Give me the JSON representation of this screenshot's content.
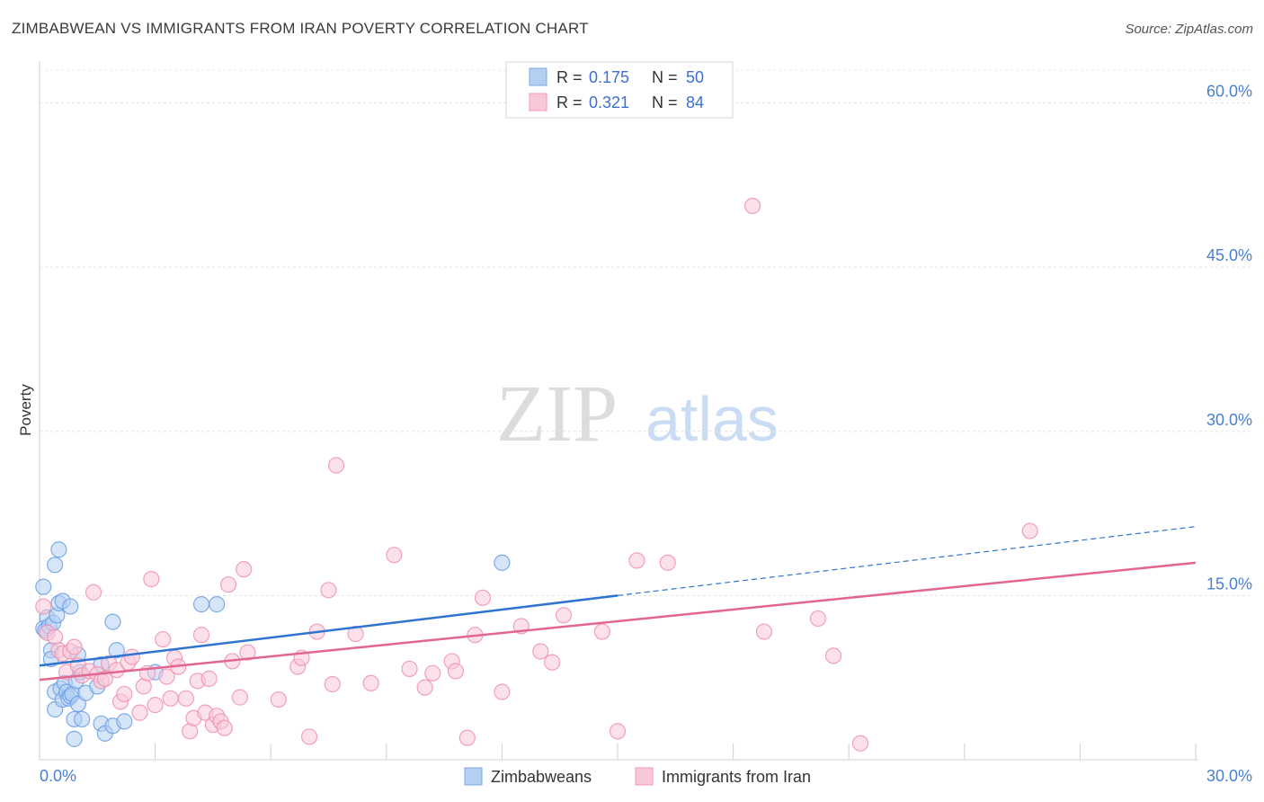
{
  "header": {
    "title": "ZIMBABWEAN VS IMMIGRANTS FROM IRAN POVERTY CORRELATION CHART",
    "source": "Source: ZipAtlas.com"
  },
  "watermark": {
    "zip": "ZIP",
    "atlas": "atlas"
  },
  "legend": {
    "r_label": "R =",
    "n_label": "N =",
    "entries": [
      {
        "r": "0.175",
        "n": "50",
        "color": "#9cc0ef"
      },
      {
        "r": "0.321",
        "n": "84",
        "color": "#f5b3c8"
      }
    ]
  },
  "chart_data": {
    "type": "scatter",
    "title": "ZIMBABWEAN VS IMMIGRANTS FROM IRAN POVERTY CORRELATION CHART",
    "xlabel": "",
    "ylabel": "Poverty",
    "xlim": [
      0,
      30
    ],
    "ylim": [
      0,
      63
    ],
    "y_ticks": [
      15,
      30,
      45,
      60
    ],
    "y_tick_labels": [
      "15.0%",
      "30.0%",
      "45.0%",
      "60.0%"
    ],
    "x_tick_labels": [
      "0.0%",
      "30.0%"
    ],
    "grid": true,
    "series": [
      {
        "name": "Zimbabweans",
        "color": "#6a9fe6",
        "fill": "#b5cff3",
        "trend": {
          "x0": 0,
          "y0": 8.6,
          "x1": 15.0,
          "y1": 15.0,
          "dash_to_x": 30,
          "dash_to_y": 21.3,
          "color": "#2f74d0"
        },
        "points": [
          {
            "x": 0.1,
            "y": 15.8
          },
          {
            "x": 0.1,
            "y": 12.0
          },
          {
            "x": 0.15,
            "y": 11.8
          },
          {
            "x": 0.2,
            "y": 13.0
          },
          {
            "x": 0.25,
            "y": 12.2
          },
          {
            "x": 0.3,
            "y": 10.0
          },
          {
            "x": 0.3,
            "y": 9.2
          },
          {
            "x": 0.35,
            "y": 12.5
          },
          {
            "x": 0.4,
            "y": 17.8
          },
          {
            "x": 0.4,
            "y": 6.2
          },
          {
            "x": 0.4,
            "y": 4.6
          },
          {
            "x": 0.45,
            "y": 13.2
          },
          {
            "x": 0.5,
            "y": 19.2
          },
          {
            "x": 0.5,
            "y": 14.3
          },
          {
            "x": 0.55,
            "y": 6.5
          },
          {
            "x": 0.6,
            "y": 5.5
          },
          {
            "x": 0.6,
            "y": 14.5
          },
          {
            "x": 0.65,
            "y": 7.0
          },
          {
            "x": 0.7,
            "y": 6.2
          },
          {
            "x": 0.75,
            "y": 5.6
          },
          {
            "x": 0.8,
            "y": 14.0
          },
          {
            "x": 0.8,
            "y": 5.8
          },
          {
            "x": 0.85,
            "y": 6.0
          },
          {
            "x": 0.9,
            "y": 1.9
          },
          {
            "x": 0.9,
            "y": 3.7
          },
          {
            "x": 0.95,
            "y": 7.2
          },
          {
            "x": 1.0,
            "y": 9.6
          },
          {
            "x": 1.0,
            "y": 5.1
          },
          {
            "x": 1.05,
            "y": 8.0
          },
          {
            "x": 1.1,
            "y": 3.7
          },
          {
            "x": 1.2,
            "y": 6.1
          },
          {
            "x": 1.5,
            "y": 6.7
          },
          {
            "x": 1.6,
            "y": 8.7
          },
          {
            "x": 1.6,
            "y": 3.3
          },
          {
            "x": 1.7,
            "y": 2.4
          },
          {
            "x": 1.9,
            "y": 12.6
          },
          {
            "x": 1.9,
            "y": 3.1
          },
          {
            "x": 2.0,
            "y": 10.0
          },
          {
            "x": 2.2,
            "y": 3.5
          },
          {
            "x": 3.0,
            "y": 8.0
          },
          {
            "x": 4.2,
            "y": 14.2
          },
          {
            "x": 4.6,
            "y": 14.2
          },
          {
            "x": 12.0,
            "y": 18.0
          }
        ]
      },
      {
        "name": "Immigrants from Iran",
        "color": "#ee91b0",
        "fill": "#f9c8d8",
        "trend": {
          "x0": 0,
          "y0": 7.3,
          "x1": 30,
          "y1": 18.0,
          "color": "#e2668f"
        },
        "points": [
          {
            "x": 0.1,
            "y": 14.0
          },
          {
            "x": 0.2,
            "y": 11.6
          },
          {
            "x": 0.4,
            "y": 11.2
          },
          {
            "x": 0.5,
            "y": 10.0
          },
          {
            "x": 0.6,
            "y": 9.7
          },
          {
            "x": 0.7,
            "y": 8.0
          },
          {
            "x": 0.8,
            "y": 9.9
          },
          {
            "x": 0.9,
            "y": 10.3
          },
          {
            "x": 1.0,
            "y": 8.6
          },
          {
            "x": 1.1,
            "y": 7.7
          },
          {
            "x": 1.3,
            "y": 8.1
          },
          {
            "x": 1.4,
            "y": 15.3
          },
          {
            "x": 1.5,
            "y": 7.8
          },
          {
            "x": 1.6,
            "y": 7.2
          },
          {
            "x": 1.7,
            "y": 7.4
          },
          {
            "x": 1.8,
            "y": 8.8
          },
          {
            "x": 2.0,
            "y": 8.2
          },
          {
            "x": 2.1,
            "y": 5.3
          },
          {
            "x": 2.2,
            "y": 6.0
          },
          {
            "x": 2.3,
            "y": 8.9
          },
          {
            "x": 2.4,
            "y": 9.4
          },
          {
            "x": 2.6,
            "y": 4.3
          },
          {
            "x": 2.7,
            "y": 6.7
          },
          {
            "x": 2.8,
            "y": 7.9
          },
          {
            "x": 2.9,
            "y": 16.5
          },
          {
            "x": 3.0,
            "y": 5.0
          },
          {
            "x": 3.2,
            "y": 11.0
          },
          {
            "x": 3.3,
            "y": 7.6
          },
          {
            "x": 3.4,
            "y": 5.6
          },
          {
            "x": 3.5,
            "y": 9.3
          },
          {
            "x": 3.6,
            "y": 8.5
          },
          {
            "x": 3.8,
            "y": 5.6
          },
          {
            "x": 3.9,
            "y": 2.6
          },
          {
            "x": 4.0,
            "y": 3.8
          },
          {
            "x": 4.1,
            "y": 7.2
          },
          {
            "x": 4.2,
            "y": 11.4
          },
          {
            "x": 4.3,
            "y": 4.3
          },
          {
            "x": 4.4,
            "y": 7.4
          },
          {
            "x": 4.5,
            "y": 3.2
          },
          {
            "x": 4.6,
            "y": 4.0
          },
          {
            "x": 4.7,
            "y": 3.5
          },
          {
            "x": 4.8,
            "y": 2.9
          },
          {
            "x": 4.9,
            "y": 16.0
          },
          {
            "x": 5.0,
            "y": 9.0
          },
          {
            "x": 5.2,
            "y": 5.7
          },
          {
            "x": 5.3,
            "y": 17.4
          },
          {
            "x": 5.4,
            "y": 9.8
          },
          {
            "x": 6.2,
            "y": 5.5
          },
          {
            "x": 6.7,
            "y": 8.5
          },
          {
            "x": 6.8,
            "y": 9.3
          },
          {
            "x": 7.0,
            "y": 2.1
          },
          {
            "x": 7.2,
            "y": 11.7
          },
          {
            "x": 7.5,
            "y": 15.5
          },
          {
            "x": 7.6,
            "y": 6.9
          },
          {
            "x": 7.7,
            "y": 26.9
          },
          {
            "x": 8.2,
            "y": 11.5
          },
          {
            "x": 8.6,
            "y": 7.0
          },
          {
            "x": 9.2,
            "y": 18.7
          },
          {
            "x": 9.6,
            "y": 8.3
          },
          {
            "x": 10.0,
            "y": 6.6
          },
          {
            "x": 10.2,
            "y": 7.9
          },
          {
            "x": 10.7,
            "y": 9.0
          },
          {
            "x": 10.8,
            "y": 8.1
          },
          {
            "x": 11.1,
            "y": 2.0
          },
          {
            "x": 11.3,
            "y": 11.4
          },
          {
            "x": 11.5,
            "y": 14.8
          },
          {
            "x": 12.0,
            "y": 6.2
          },
          {
            "x": 12.5,
            "y": 12.2
          },
          {
            "x": 13.0,
            "y": 9.9
          },
          {
            "x": 13.3,
            "y": 8.9
          },
          {
            "x": 13.6,
            "y": 13.2
          },
          {
            "x": 14.6,
            "y": 11.7
          },
          {
            "x": 15.0,
            "y": 2.6
          },
          {
            "x": 15.5,
            "y": 18.2
          },
          {
            "x": 16.3,
            "y": 18.0
          },
          {
            "x": 18.5,
            "y": 50.6
          },
          {
            "x": 18.8,
            "y": 11.7
          },
          {
            "x": 20.2,
            "y": 12.9
          },
          {
            "x": 20.6,
            "y": 9.5
          },
          {
            "x": 21.3,
            "y": 1.5
          },
          {
            "x": 25.7,
            "y": 20.9
          }
        ]
      }
    ]
  }
}
